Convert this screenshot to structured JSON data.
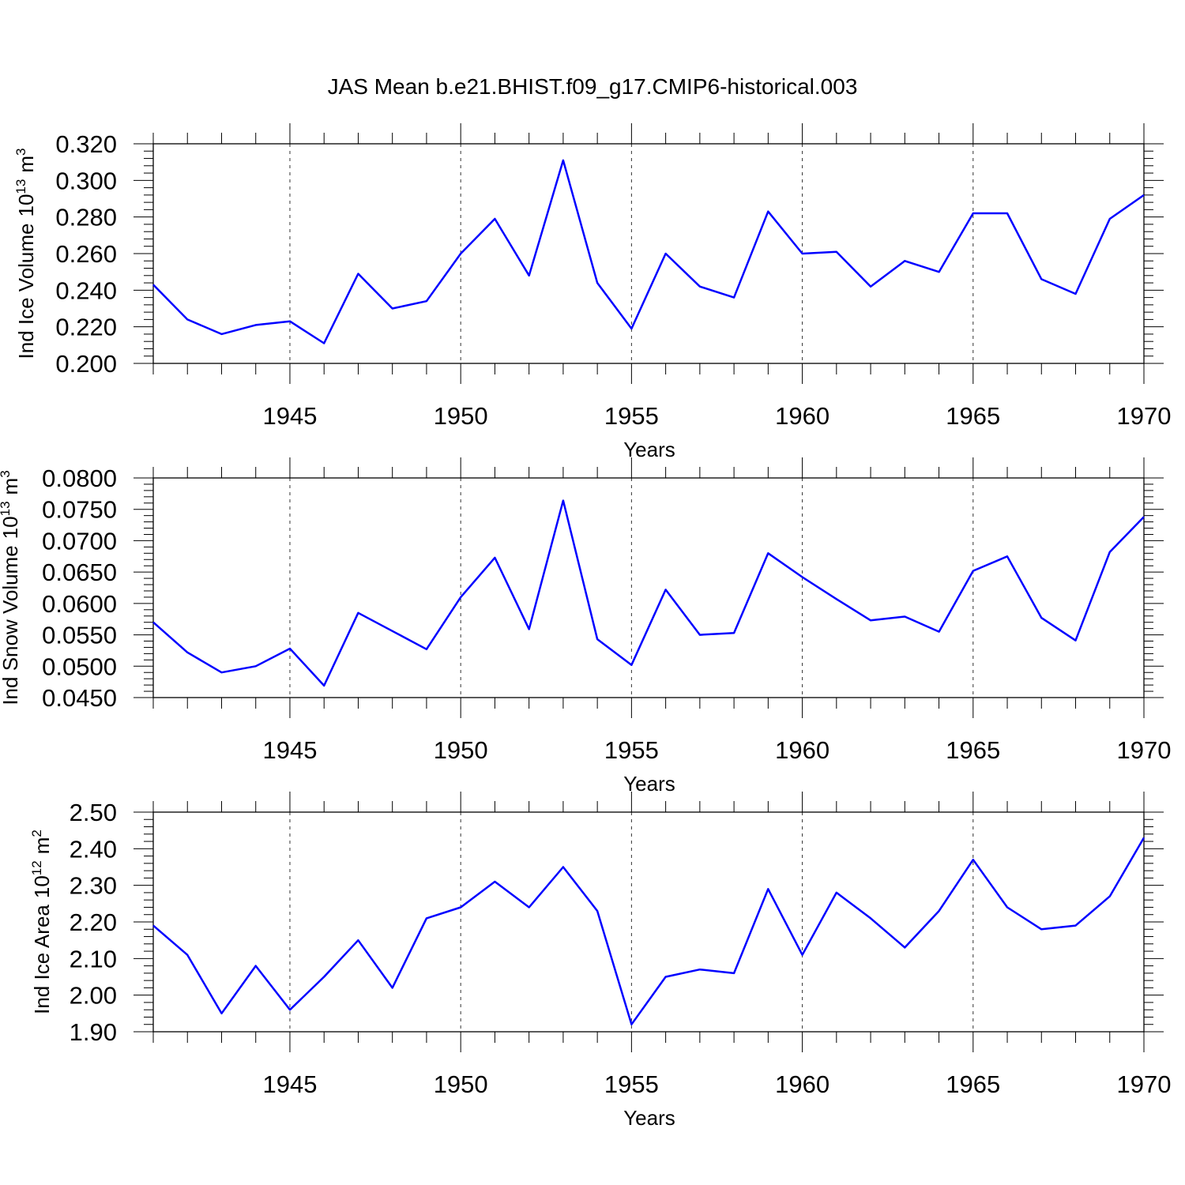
{
  "title": "JAS Mean b.e21.BHIST.f09_g17.CMIP6-historical.003",
  "colors": {
    "series": "#0000ff",
    "axis": "#000000"
  },
  "chart_data": [
    {
      "type": "line",
      "ylabel": "Ind Ice Volume",
      "ylabel_unit_base": "10",
      "ylabel_unit_exp": "13",
      "ylabel_unit_m": "m",
      "ylabel_unit_m_exp": "3",
      "xlabel": "Years",
      "xlim": [
        1941,
        1970
      ],
      "ylim": [
        0.2,
        0.32
      ],
      "yticks": [
        "0.200",
        "0.220",
        "0.240",
        "0.260",
        "0.280",
        "0.300",
        "0.320"
      ],
      "yminor_step": 0.004,
      "xticks": [
        "1945",
        "1950",
        "1955",
        "1960",
        "1965",
        "1970"
      ],
      "grid": "dashed vertical at 5-year ticks",
      "x": [
        1941,
        1942,
        1943,
        1944,
        1945,
        1946,
        1947,
        1948,
        1949,
        1950,
        1951,
        1952,
        1953,
        1954,
        1955,
        1956,
        1957,
        1958,
        1959,
        1960,
        1961,
        1962,
        1963,
        1964,
        1965,
        1966,
        1967,
        1968,
        1969,
        1970
      ],
      "values": [
        0.243,
        0.224,
        0.216,
        0.221,
        0.223,
        0.211,
        0.249,
        0.23,
        0.234,
        0.26,
        0.279,
        0.248,
        0.311,
        0.244,
        0.219,
        0.26,
        0.242,
        0.236,
        0.283,
        0.26,
        0.261,
        0.242,
        0.256,
        0.25,
        0.282,
        0.282,
        0.246,
        0.238,
        0.279,
        0.292
      ]
    },
    {
      "type": "line",
      "ylabel": "Ind Snow Volume",
      "ylabel_unit_base": "10",
      "ylabel_unit_exp": "13",
      "ylabel_unit_m": "m",
      "ylabel_unit_m_exp": "3",
      "xlabel": "Years",
      "xlim": [
        1941,
        1970
      ],
      "ylim": [
        0.045,
        0.08
      ],
      "yticks": [
        "0.0450",
        "0.0500",
        "0.0550",
        "0.0600",
        "0.0650",
        "0.0700",
        "0.0750",
        "0.0800"
      ],
      "yminor_step": 0.001,
      "xticks": [
        "1945",
        "1950",
        "1955",
        "1960",
        "1965",
        "1970"
      ],
      "grid": "dashed vertical at 5-year ticks",
      "x": [
        1941,
        1942,
        1943,
        1944,
        1945,
        1946,
        1947,
        1948,
        1949,
        1950,
        1951,
        1952,
        1953,
        1954,
        1955,
        1956,
        1957,
        1958,
        1959,
        1960,
        1961,
        1962,
        1963,
        1964,
        1965,
        1966,
        1967,
        1968,
        1969,
        1970
      ],
      "values": [
        0.057,
        0.0522,
        0.049,
        0.05,
        0.0528,
        0.0469,
        0.0585,
        0.0556,
        0.0527,
        0.061,
        0.0673,
        0.0559,
        0.0764,
        0.0543,
        0.0502,
        0.0622,
        0.055,
        0.0553,
        0.068,
        0.0642,
        0.0607,
        0.0573,
        0.0579,
        0.0555,
        0.0652,
        0.0675,
        0.0577,
        0.0541,
        0.0682,
        0.0738
      ]
    },
    {
      "type": "line",
      "ylabel": "Ind Ice Area",
      "ylabel_unit_base": "10",
      "ylabel_unit_exp": "12",
      "ylabel_unit_m": "m",
      "ylabel_unit_m_exp": "2",
      "xlabel": "Years",
      "xlim": [
        1941,
        1970
      ],
      "ylim": [
        1.9,
        2.5
      ],
      "yticks": [
        "1.90",
        "2.00",
        "2.10",
        "2.20",
        "2.30",
        "2.40",
        "2.50"
      ],
      "yminor_step": 0.02,
      "xticks": [
        "1945",
        "1950",
        "1955",
        "1960",
        "1965",
        "1970"
      ],
      "grid": "dashed vertical at 5-year ticks",
      "x": [
        1941,
        1942,
        1943,
        1944,
        1945,
        1946,
        1947,
        1948,
        1949,
        1950,
        1951,
        1952,
        1953,
        1954,
        1955,
        1956,
        1957,
        1958,
        1959,
        1960,
        1961,
        1962,
        1963,
        1964,
        1965,
        1966,
        1967,
        1968,
        1969,
        1970
      ],
      "values": [
        2.19,
        2.11,
        1.95,
        2.08,
        1.96,
        2.05,
        2.15,
        2.02,
        2.21,
        2.24,
        2.31,
        2.24,
        2.35,
        2.23,
        1.92,
        2.05,
        2.07,
        2.06,
        2.29,
        2.11,
        2.28,
        2.21,
        2.13,
        2.23,
        2.37,
        2.24,
        2.18,
        2.19,
        2.27,
        2.43
      ]
    }
  ]
}
